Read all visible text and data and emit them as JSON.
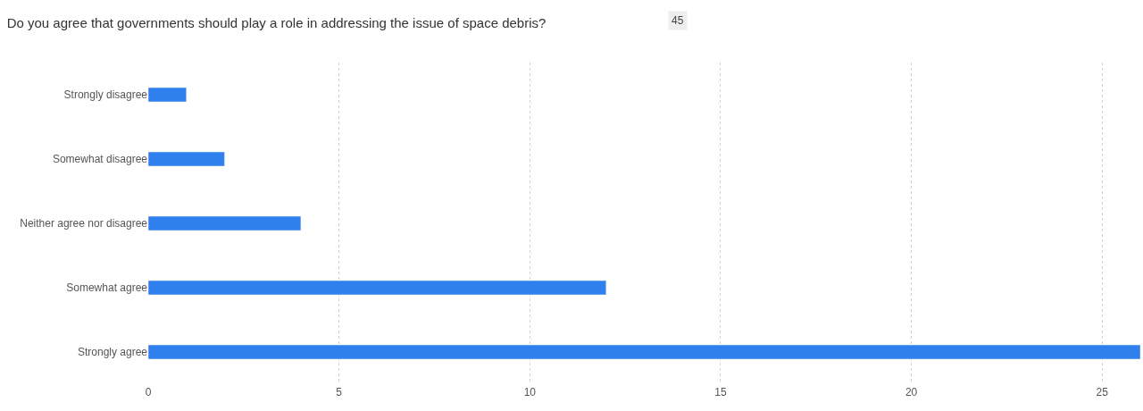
{
  "chart_data": {
    "type": "bar",
    "orientation": "horizontal",
    "title": "Do you agree that governments should play a role in addressing the issue of space debris?",
    "annotations": [
      "45"
    ],
    "categories": [
      "Strongly disagree",
      "Somewhat disagree",
      "Neither agree nor disagree",
      "Somewhat agree",
      "Strongly agree"
    ],
    "values": [
      1,
      2,
      4,
      12,
      26
    ],
    "color": "#2f80ed",
    "xlim": [
      0,
      26
    ],
    "xticks": [
      0,
      5,
      10,
      15,
      20,
      25
    ],
    "grid": "x",
    "legend": false
  }
}
